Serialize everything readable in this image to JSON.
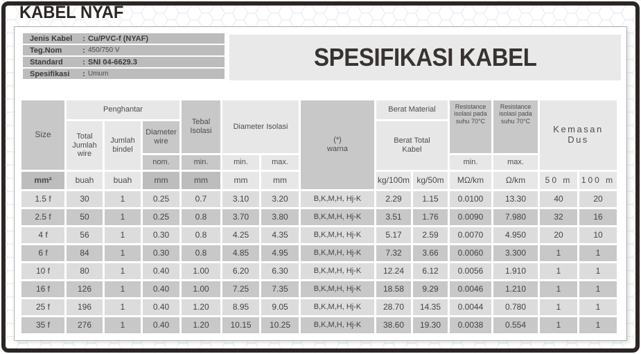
{
  "title": "KABEL NYAF",
  "heading": "SPESIFIKASI KABEL",
  "info_panel": {
    "colon": ":",
    "rows": [
      {
        "label": "Jenis Kabel",
        "value": "Cu/PVC-f (NYAF)"
      },
      {
        "label": "Teg.Nom",
        "value": "450/750 V"
      },
      {
        "label": "Standard",
        "value": "SNI 04-6629.3"
      },
      {
        "label": "Spesifikasi",
        "value": "Umum"
      }
    ]
  },
  "colors": {
    "frame": "#2b2623",
    "panel_light_cell": "#e7e7e7",
    "panel_dark_cell": "#c8c8c8",
    "row_light": "#dcdcdc",
    "row_dark": "#c8c8c8",
    "info_bar": "#bcbcbc"
  },
  "table": {
    "header": {
      "size": "Size",
      "penghantar": "Penghantar",
      "total_jumlah_wire": "Total Jumlah wire",
      "jumlah_bindel": "Jumlah bindel",
      "diameter_wire": "Diameter wire",
      "nom": "nom.",
      "tebal_isolasi": "Tebal Isolasi",
      "tebal_isolasi_min": "min.",
      "diameter_isolasi": "Diameter Isolasi",
      "diameter_isolasi_min": "min.",
      "diameter_isolasi_max": "max.",
      "warna_line1": "(*)",
      "warna_line2": "warna",
      "berat_material": "Berat Material",
      "berat_total_kabel": "Berat Total Kabel",
      "resistance_min_title": "Resistance isolasi pada suhu 70°C",
      "resistance_min_label": "min.",
      "resistance_max_title": "Resistance isolasi pada suhu 70°C",
      "resistance_max_label": "max.",
      "kemasan_dus": "Kemasan Dus"
    },
    "units": [
      "mm²",
      "buah",
      "buah",
      "mm",
      "mm",
      "mm",
      "mm",
      "kg/100m",
      "kg/50m",
      "MΩ/km",
      "Ω/km",
      "50 m",
      "100 m"
    ],
    "rows": [
      [
        "1.5 f",
        "30",
        "1",
        "0.25",
        "0.7",
        "3.10",
        "3.20",
        "B,K,M,H, Hj-K",
        "2.29",
        "1.15",
        "0.0100",
        "13.30",
        "40",
        "20"
      ],
      [
        "2.5 f",
        "50",
        "1",
        "0.25",
        "0.8",
        "3.70",
        "3.80",
        "B,K,M,H, Hj-K",
        "3.51",
        "1.76",
        "0.0090",
        "7.980",
        "32",
        "16"
      ],
      [
        "4 f",
        "56",
        "1",
        "0.30",
        "0.8",
        "4.25",
        "4.35",
        "B,K,M,H, Hj-K",
        "5.17",
        "2.59",
        "0.0070",
        "4.950",
        "20",
        "10"
      ],
      [
        "6 f",
        "84",
        "1",
        "0.30",
        "0.8",
        "4.85",
        "4.95",
        "B,K,M,H, Hj-K",
        "7.32",
        "3.66",
        "0.0060",
        "3.300",
        "1",
        "1"
      ],
      [
        "10 f",
        "80",
        "1",
        "0.40",
        "1.00",
        "6.20",
        "6.30",
        "B,K,M,H, Hj-K",
        "12.24",
        "6.12",
        "0.0056",
        "1.910",
        "1",
        "1"
      ],
      [
        "16 f",
        "126",
        "1",
        "0.40",
        "1.00",
        "7.25",
        "7.35",
        "B,K,M,H, Hj-K",
        "18.58",
        "9.29",
        "0.0046",
        "1.210",
        "1",
        "1"
      ],
      [
        "25 f",
        "196",
        "1",
        "0.40",
        "1.20",
        "8.95",
        "9.05",
        "B,K,M,H, Hj-K",
        "28.70",
        "14.35",
        "0.0044",
        "0.780",
        "1",
        "1"
      ],
      [
        "35 f",
        "276",
        "1",
        "0.40",
        "1.20",
        "10.15",
        "10.25",
        "B,K,M,H, Hj-K",
        "38.60",
        "19.30",
        "0.0038",
        "0.554",
        "1",
        "1"
      ]
    ]
  }
}
